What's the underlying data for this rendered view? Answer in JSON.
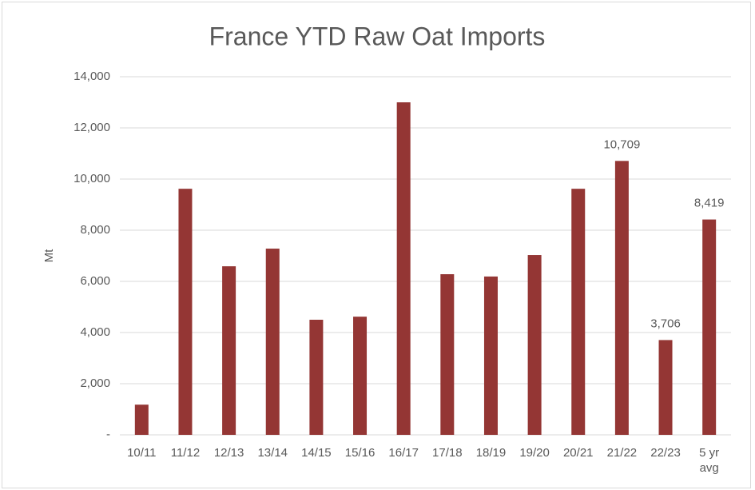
{
  "chart_data": {
    "type": "bar",
    "title": "France YTD Raw Oat Imports",
    "y_label": "Mt",
    "categories": [
      "10/11",
      "11/12",
      "12/13",
      "13/14",
      "14/15",
      "15/16",
      "16/17",
      "17/18",
      "18/19",
      "19/20",
      "20/21",
      "21/22",
      "22/23",
      "5 yr avg"
    ],
    "values": [
      1180,
      9620,
      6590,
      7280,
      4500,
      4620,
      13000,
      6280,
      6190,
      7030,
      9620,
      10709,
      3706,
      8419
    ],
    "value_labels": [
      null,
      null,
      null,
      null,
      null,
      null,
      null,
      null,
      null,
      null,
      null,
      "10,709",
      "3,706",
      "8,419"
    ],
    "color": "#943634",
    "ylim": [
      0,
      14000
    ],
    "yticks": [
      {
        "value": 0,
        "label": "-"
      },
      {
        "value": 2000,
        "label": "2,000"
      },
      {
        "value": 4000,
        "label": "4,000"
      },
      {
        "value": 6000,
        "label": "6,000"
      },
      {
        "value": 8000,
        "label": "8,000"
      },
      {
        "value": 10000,
        "label": "10,000"
      },
      {
        "value": 12000,
        "label": "12,000"
      },
      {
        "value": 14000,
        "label": "14,000"
      }
    ],
    "grid": true
  }
}
